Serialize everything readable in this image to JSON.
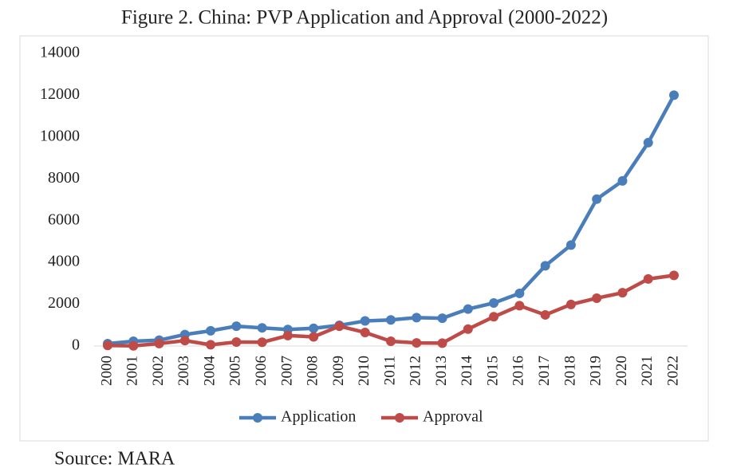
{
  "chart_data": {
    "type": "line",
    "title": "Figure 2. China: PVP Application and Approval (2000-2022)",
    "source": "Source: MARA",
    "categories": [
      "2000",
      "2001",
      "2002",
      "2003",
      "2004",
      "2005",
      "2006",
      "2007",
      "2008",
      "2009",
      "2010",
      "2011",
      "2012",
      "2013",
      "2014",
      "2015",
      "2016",
      "2017",
      "2018",
      "2019",
      "2020",
      "2021",
      "2022"
    ],
    "series": [
      {
        "name": "Application",
        "color": "#4a7ebb",
        "values": [
          115,
          230,
          280,
          550,
          730,
          950,
          870,
          790,
          850,
          990,
          1200,
          1250,
          1360,
          1330,
          1770,
          2060,
          2520,
          3840,
          4830,
          7030,
          7900,
          9730,
          12000
        ]
      },
      {
        "name": "Approval",
        "color": "#be4b48",
        "values": [
          30,
          10,
          120,
          260,
          60,
          190,
          180,
          500,
          440,
          950,
          650,
          230,
          150,
          140,
          810,
          1400,
          1930,
          1490,
          1990,
          2290,
          2550,
          3210,
          3380
        ]
      }
    ],
    "ylim": [
      0,
      14000
    ],
    "yticks": [
      0,
      2000,
      4000,
      6000,
      8000,
      10000,
      12000,
      14000
    ],
    "grid": false,
    "legend": "bottom"
  }
}
